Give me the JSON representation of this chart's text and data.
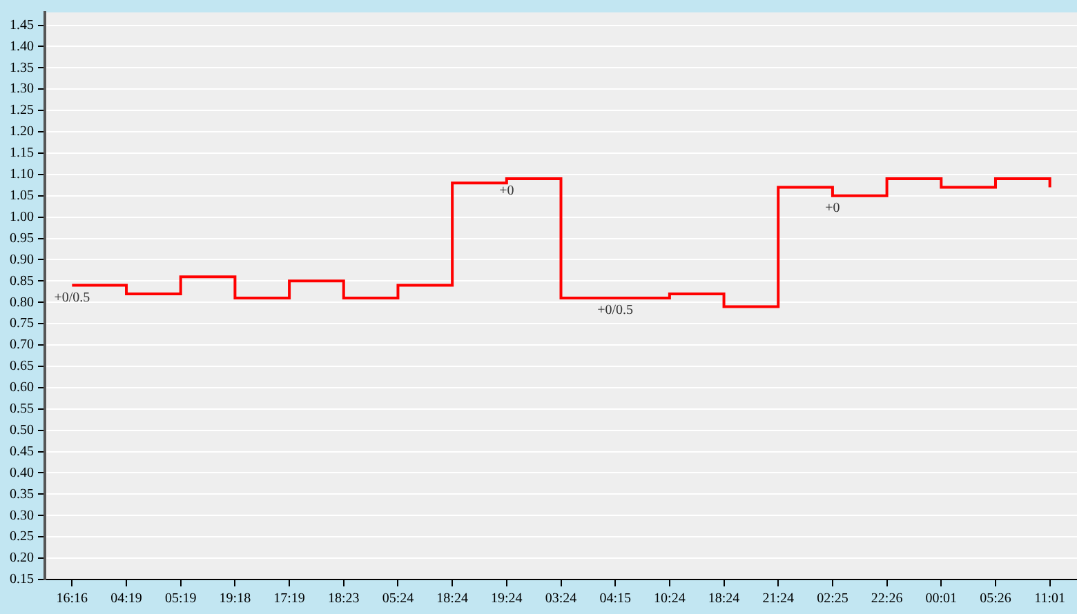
{
  "chart_data": {
    "type": "step",
    "categories": [
      "16:16",
      "04:19",
      "05:19",
      "19:18",
      "17:19",
      "18:23",
      "05:24",
      "18:24",
      "19:24",
      "03:24",
      "04:15",
      "10:24",
      "18:24",
      "21:24",
      "02:25",
      "22:26",
      "00:01",
      "05:26",
      "11:01"
    ],
    "series": [
      {
        "color": "#ff0000",
        "values": [
          0.84,
          0.82,
          0.86,
          0.81,
          0.85,
          0.81,
          0.84,
          1.08,
          1.09,
          0.81,
          0.81,
          0.82,
          0.79,
          1.07,
          1.05,
          1.09,
          1.07,
          1.09,
          1.07
        ]
      }
    ],
    "ylim": [
      0.15,
      1.48
    ],
    "yticks": [
      {
        "value": 0.15,
        "label": "0.15"
      },
      {
        "value": 0.2,
        "label": "0.20"
      },
      {
        "value": 0.25,
        "label": "0.25"
      },
      {
        "value": 0.3,
        "label": "0.30"
      },
      {
        "value": 0.35,
        "label": "0.35"
      },
      {
        "value": 0.4,
        "label": "0.40"
      },
      {
        "value": 0.45,
        "label": "0.45"
      },
      {
        "value": 0.5,
        "label": "0.50"
      },
      {
        "value": 0.55,
        "label": "0.55"
      },
      {
        "value": 0.6,
        "label": "0.60"
      },
      {
        "value": 0.65,
        "label": "0.65"
      },
      {
        "value": 0.7,
        "label": "0.70"
      },
      {
        "value": 0.75,
        "label": "0.75"
      },
      {
        "value": 0.8,
        "label": "0.80"
      },
      {
        "value": 0.85,
        "label": "0.85"
      },
      {
        "value": 0.9,
        "label": "0.90"
      },
      {
        "value": 0.95,
        "label": "0.95"
      },
      {
        "value": 1.0,
        "label": "1.00"
      },
      {
        "value": 1.05,
        "label": "1.05"
      },
      {
        "value": 1.1,
        "label": "1.10"
      },
      {
        "value": 1.15,
        "label": "1.15"
      },
      {
        "value": 1.2,
        "label": "1.20"
      },
      {
        "value": 1.25,
        "label": "1.25"
      },
      {
        "value": 1.3,
        "label": "1.30"
      },
      {
        "value": 1.35,
        "label": "1.35"
      },
      {
        "value": 1.4,
        "label": "1.40"
      },
      {
        "value": 1.45,
        "label": "1.45"
      }
    ],
    "annotations": [
      {
        "text": "+0/0.5",
        "x": "16:16",
        "y": 0.84
      },
      {
        "text": "+0",
        "x": "19:24",
        "y": 1.09
      },
      {
        "text": "+0/0.5",
        "x": "04:15",
        "y": 0.81
      },
      {
        "text": "+0",
        "x": "02:25",
        "y": 1.05
      }
    ],
    "grid": "y",
    "legend": false,
    "marker": "none",
    "line_style": "solid"
  }
}
